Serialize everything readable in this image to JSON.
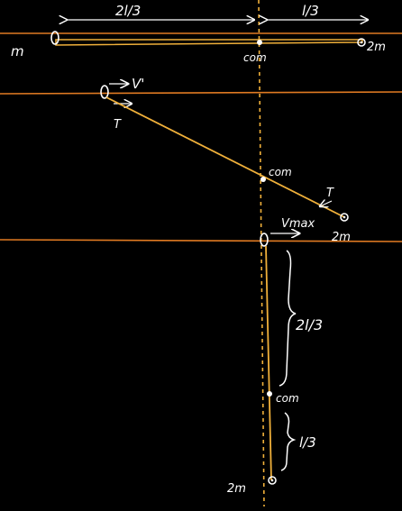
{
  "colors": {
    "background": "#000000",
    "rail": "#e07a22",
    "rod": "#f0b03a",
    "com_axis": "#f0b03a",
    "ink": "#ffffff"
  },
  "top_panel": {
    "label_two_l_by_3": "2l/3",
    "label_l_by_3": "l/3",
    "mass_left": "m",
    "mass_right": "2m",
    "com": "com"
  },
  "middle_panel": {
    "velocity_label": "V'",
    "tension_left": "T",
    "tension_right": "T",
    "com": "com",
    "mass_right": "2m"
  },
  "bottom_panel": {
    "velocity_label": "Vmax",
    "label_two_l_by_3": "2l/3",
    "label_l_by_3": "l/3",
    "com": "com",
    "mass_bottom": "2m"
  }
}
